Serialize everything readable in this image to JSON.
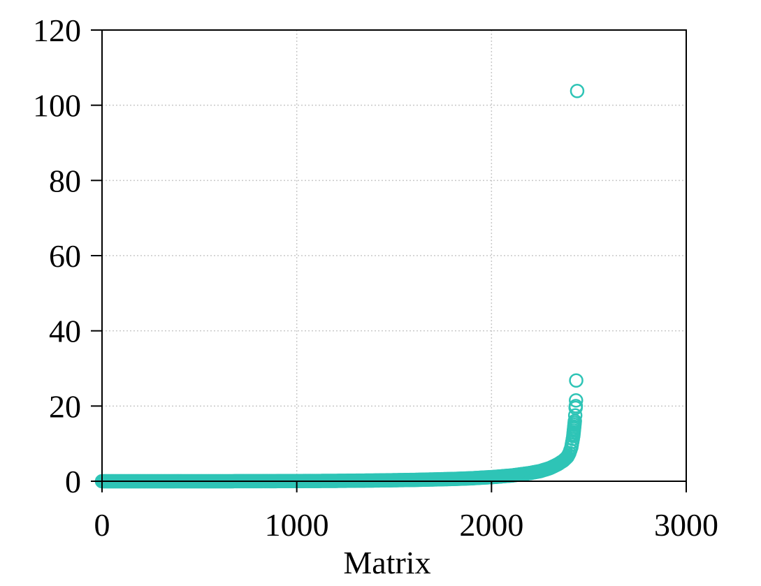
{
  "chart_data": {
    "type": "scatter",
    "title": "",
    "xlabel": "Matrix",
    "ylabel": "",
    "xlim": [
      0,
      3000
    ],
    "ylim": [
      0,
      120
    ],
    "x_ticks": [
      0,
      1000,
      2000,
      3000
    ],
    "y_ticks": [
      0,
      20,
      40,
      60,
      80,
      100,
      120
    ],
    "grid": true,
    "marker": "open-circle",
    "color": "#2ec4b6",
    "series": [
      {
        "points_description_curve": [
          [
            0,
            0.0
          ],
          [
            200,
            0.0
          ],
          [
            500,
            0.0
          ],
          [
            800,
            0.02
          ],
          [
            1000,
            0.05
          ],
          [
            1200,
            0.1
          ],
          [
            1400,
            0.2
          ],
          [
            1600,
            0.35
          ],
          [
            1800,
            0.6
          ],
          [
            1900,
            0.8
          ],
          [
            2000,
            1.1
          ],
          [
            2100,
            1.5
          ],
          [
            2200,
            2.2
          ],
          [
            2250,
            2.7
          ],
          [
            2300,
            3.5
          ],
          [
            2340,
            4.5
          ],
          [
            2370,
            5.5
          ],
          [
            2390,
            6.5
          ],
          [
            2400,
            7.5
          ],
          [
            2410,
            9.0
          ],
          [
            2415,
            10.5
          ],
          [
            2420,
            12.0
          ],
          [
            2422,
            13.0
          ],
          [
            2424,
            14.0
          ],
          [
            2426,
            15.0
          ],
          [
            2428,
            16.0
          ]
        ],
        "outliers": [
          [
            2430,
            17.5
          ],
          [
            2432,
            19.5
          ],
          [
            2433,
            20.0
          ],
          [
            2434,
            21.5
          ],
          [
            2435,
            26.8
          ],
          [
            2440,
            103.8
          ]
        ]
      }
    ]
  }
}
